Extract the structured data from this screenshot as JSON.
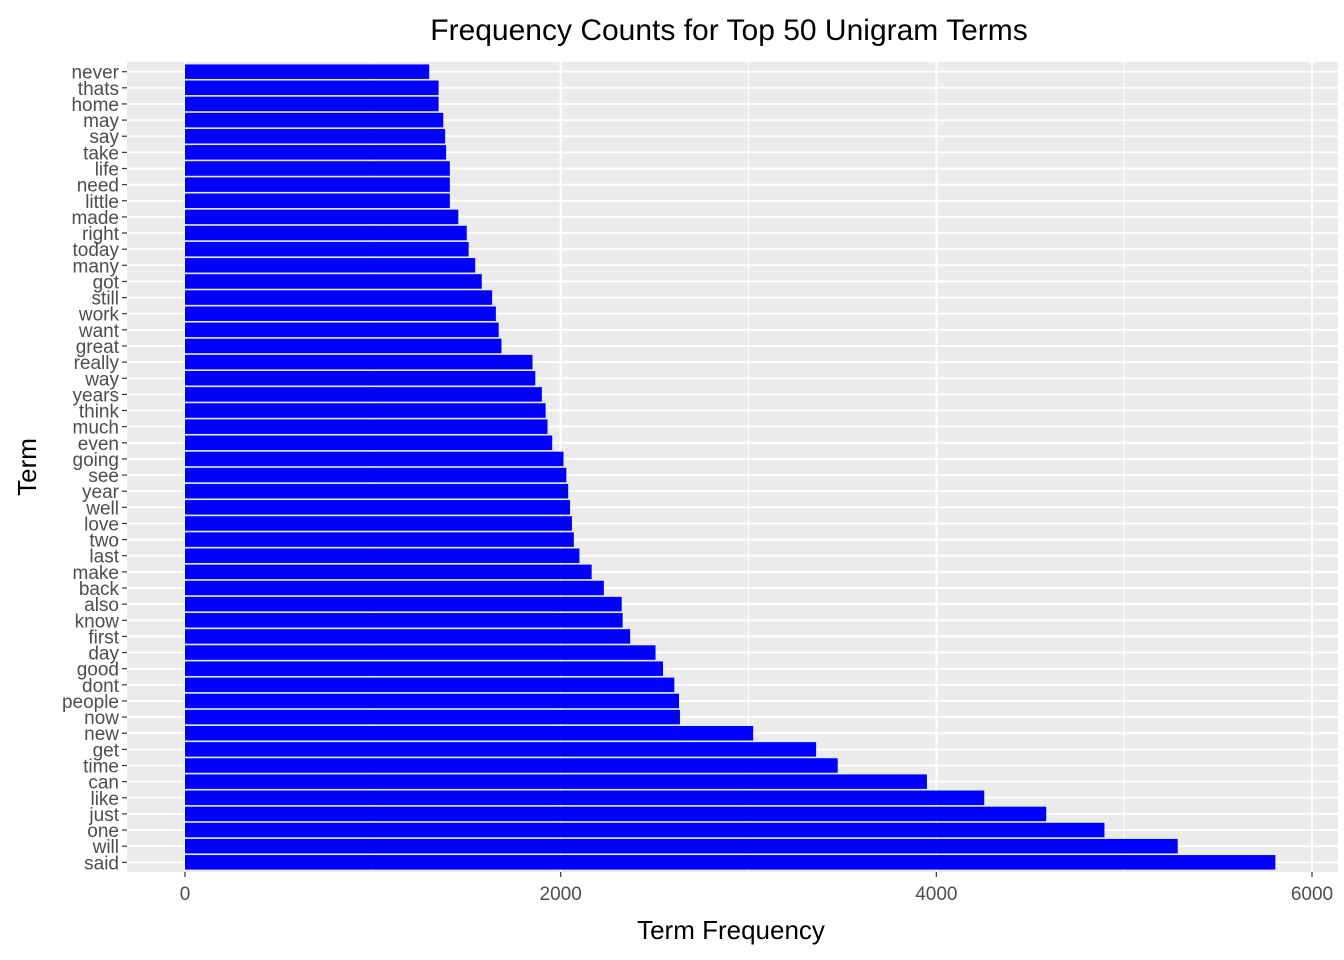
{
  "chart_data": {
    "type": "bar",
    "orientation": "horizontal",
    "title": "Frequency Counts for Top 50 Unigram Terms",
    "xlabel": "Term Frequency",
    "ylabel": "Term",
    "xlim": [
      0,
      6000
    ],
    "xticks": [
      0,
      2000,
      4000,
      6000
    ],
    "xtick_labels": [
      "0",
      "2000",
      "4000",
      "6000"
    ],
    "grid": true,
    "legend": "none",
    "colors": {
      "bar": "#0000ff",
      "panel": "#ebebeb",
      "grid": "#ffffff",
      "tick_text": "#4d4d4d"
    },
    "categories": [
      "said",
      "will",
      "one",
      "just",
      "like",
      "can",
      "time",
      "get",
      "new",
      "now",
      "people",
      "dont",
      "good",
      "day",
      "first",
      "know",
      "also",
      "back",
      "make",
      "last",
      "two",
      "love",
      "well",
      "year",
      "see",
      "going",
      "even",
      "much",
      "think",
      "years",
      "way",
      "really",
      "great",
      "want",
      "work",
      "still",
      "got",
      "many",
      "today",
      "right",
      "made",
      "little",
      "need",
      "life",
      "take",
      "say",
      "may",
      "home",
      "thats",
      "never"
    ],
    "values": [
      5805,
      5285,
      4895,
      4585,
      4255,
      3950,
      3475,
      3360,
      3025,
      2635,
      2630,
      2605,
      2545,
      2505,
      2370,
      2330,
      2325,
      2230,
      2165,
      2100,
      2070,
      2060,
      2050,
      2040,
      2030,
      2015,
      1955,
      1930,
      1920,
      1900,
      1865,
      1850,
      1685,
      1670,
      1655,
      1635,
      1580,
      1545,
      1510,
      1500,
      1455,
      1410,
      1410,
      1410,
      1390,
      1385,
      1375,
      1350,
      1350,
      1300
    ]
  }
}
